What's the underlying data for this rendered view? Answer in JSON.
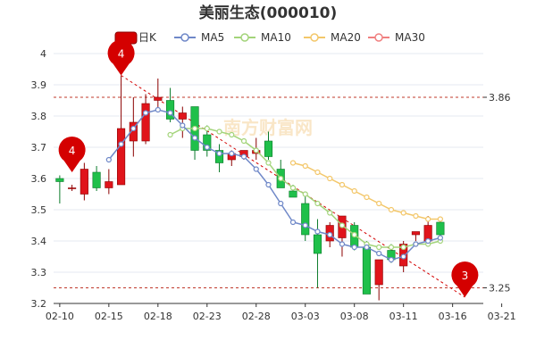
{
  "chart_data": {
    "type": "candlestick",
    "title": "美丽生态(000010)",
    "watermark": "南方财富网",
    "legend": [
      {
        "name": "日K",
        "color": "#d40000",
        "style": "box"
      },
      {
        "name": "MA5",
        "color": "#6f88c8",
        "style": "line"
      },
      {
        "name": "MA10",
        "color": "#a3d47a",
        "style": "line"
      },
      {
        "name": "MA20",
        "color": "#f3c76a",
        "style": "line"
      },
      {
        "name": "MA30",
        "color": "#f08080",
        "style": "line"
      }
    ],
    "ylim": [
      3.2,
      4.0
    ],
    "yticks": [
      "3.2",
      "3.3",
      "3.4",
      "3.5",
      "3.6",
      "3.7",
      "3.8",
      "3.9",
      "4"
    ],
    "xtick_labels": [
      {
        "i": 0,
        "label": "02-10"
      },
      {
        "i": 4,
        "label": "02-15"
      },
      {
        "i": 8,
        "label": "02-18"
      },
      {
        "i": 12,
        "label": "02-23"
      },
      {
        "i": 16,
        "label": "02-28"
      },
      {
        "i": 20,
        "label": "03-03"
      },
      {
        "i": 24,
        "label": "03-08"
      },
      {
        "i": 28,
        "label": "03-11"
      },
      {
        "i": 32,
        "label": "03-16"
      },
      {
        "i": 36,
        "label": "03-21"
      }
    ],
    "reference_lines": [
      {
        "value": 3.86,
        "label": "3.86"
      },
      {
        "value": 3.25,
        "label": "3.25"
      }
    ],
    "trend_line": {
      "from": [
        5,
        3.93
      ],
      "to": [
        33,
        3.22
      ]
    },
    "candles": [
      {
        "o": 3.6,
        "h": 3.61,
        "l": 3.52,
        "c": 3.59
      },
      {
        "o": 3.57,
        "h": 3.58,
        "l": 3.56,
        "c": 3.57
      },
      {
        "o": 3.55,
        "h": 3.65,
        "l": 3.53,
        "c": 3.63
      },
      {
        "o": 3.62,
        "h": 3.64,
        "l": 3.56,
        "c": 3.57
      },
      {
        "o": 3.57,
        "h": 3.63,
        "l": 3.55,
        "c": 3.59
      },
      {
        "o": 3.58,
        "h": 3.93,
        "l": 3.58,
        "c": 3.76
      },
      {
        "o": 3.72,
        "h": 3.86,
        "l": 3.67,
        "c": 3.78
      },
      {
        "o": 3.72,
        "h": 3.87,
        "l": 3.71,
        "c": 3.84
      },
      {
        "o": 3.85,
        "h": 3.92,
        "l": 3.82,
        "c": 3.86
      },
      {
        "o": 3.85,
        "h": 3.89,
        "l": 3.78,
        "c": 3.79
      },
      {
        "o": 3.79,
        "h": 3.83,
        "l": 3.73,
        "c": 3.81
      },
      {
        "o": 3.83,
        "h": 3.83,
        "l": 3.66,
        "c": 3.69
      },
      {
        "o": 3.74,
        "h": 3.77,
        "l": 3.67,
        "c": 3.69
      },
      {
        "o": 3.69,
        "h": 3.71,
        "l": 3.62,
        "c": 3.65
      },
      {
        "o": 3.66,
        "h": 3.69,
        "l": 3.64,
        "c": 3.68
      },
      {
        "o": 3.67,
        "h": 3.69,
        "l": 3.66,
        "c": 3.69
      },
      {
        "o": 3.68,
        "h": 3.73,
        "l": 3.66,
        "c": 3.69
      },
      {
        "o": 3.72,
        "h": 3.75,
        "l": 3.66,
        "c": 3.67
      },
      {
        "o": 3.63,
        "h": 3.66,
        "l": 3.57,
        "c": 3.57
      },
      {
        "o": 3.56,
        "h": 3.58,
        "l": 3.54,
        "c": 3.54
      },
      {
        "o": 3.52,
        "h": 3.55,
        "l": 3.4,
        "c": 3.42
      },
      {
        "o": 3.42,
        "h": 3.47,
        "l": 3.25,
        "c": 3.36
      },
      {
        "o": 3.4,
        "h": 3.46,
        "l": 3.38,
        "c": 3.45
      },
      {
        "o": 3.41,
        "h": 3.48,
        "l": 3.35,
        "c": 3.48
      },
      {
        "o": 3.45,
        "h": 3.46,
        "l": 3.37,
        "c": 3.38
      },
      {
        "o": 3.38,
        "h": 3.4,
        "l": 3.23,
        "c": 3.23
      },
      {
        "o": 3.26,
        "h": 3.34,
        "l": 3.21,
        "c": 3.34
      },
      {
        "o": 3.37,
        "h": 3.39,
        "l": 3.33,
        "c": 3.34
      },
      {
        "o": 3.32,
        "h": 3.4,
        "l": 3.3,
        "c": 3.39
      },
      {
        "o": 3.42,
        "h": 3.43,
        "l": 3.4,
        "c": 3.43
      },
      {
        "o": 3.4,
        "h": 3.48,
        "l": 3.39,
        "c": 3.45
      },
      {
        "o": 3.46,
        "h": 3.47,
        "l": 3.41,
        "c": 3.42
      }
    ],
    "candle_x_offset": 0,
    "ma5": [
      null,
      null,
      null,
      null,
      3.66,
      3.71,
      3.76,
      3.81,
      3.82,
      3.81,
      3.77,
      3.73,
      3.7,
      3.68,
      3.68,
      3.67,
      3.63,
      3.58,
      3.52,
      3.46,
      3.45,
      3.43,
      3.42,
      3.39,
      3.38,
      3.38,
      3.36,
      3.34,
      3.35,
      3.39,
      3.4,
      3.41
    ],
    "ma10": [
      null,
      null,
      null,
      null,
      null,
      null,
      null,
      null,
      null,
      3.74,
      3.76,
      3.76,
      3.76,
      3.75,
      3.74,
      3.72,
      3.69,
      3.65,
      3.6,
      3.57,
      3.55,
      3.52,
      3.49,
      3.45,
      3.42,
      3.39,
      3.38,
      3.38,
      3.38,
      3.39,
      3.39,
      3.4
    ],
    "ma20": [
      null,
      null,
      null,
      null,
      null,
      null,
      null,
      null,
      null,
      null,
      null,
      null,
      null,
      null,
      null,
      null,
      null,
      null,
      null,
      3.65,
      3.64,
      3.62,
      3.6,
      3.58,
      3.56,
      3.54,
      3.52,
      3.5,
      3.49,
      3.48,
      3.47,
      3.47
    ],
    "markers": [
      {
        "i": 1,
        "value": 3.62,
        "label": "4"
      },
      {
        "i": 5,
        "value": 3.93,
        "label": "4"
      },
      {
        "i": 33,
        "value": 3.22,
        "label": "3"
      }
    ]
  }
}
